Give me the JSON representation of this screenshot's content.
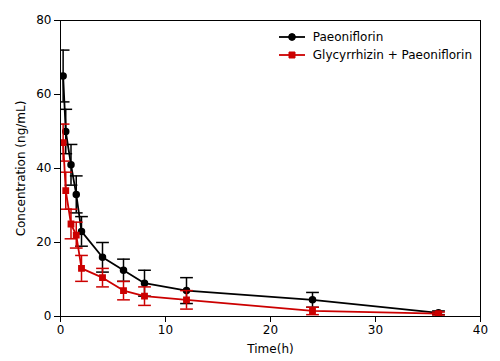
{
  "chart_data": {
    "type": "line",
    "xlabel": "Time(h)",
    "ylabel": "Concentration (ng/mL)",
    "xlim": [
      0,
      40
    ],
    "ylim": [
      0,
      80
    ],
    "xticks": [
      0,
      10,
      20,
      30,
      40
    ],
    "yticks": [
      0,
      20,
      40,
      60,
      80
    ],
    "grid": false,
    "legend": "upper right",
    "series": [
      {
        "name": "Paeoniflorin",
        "color": "#000000",
        "marker": "circle",
        "x": [
          0.25,
          0.5,
          1.0,
          1.5,
          2.0,
          4.0,
          6.0,
          8.0,
          12.0,
          24.0,
          36.0
        ],
        "values": [
          65.0,
          50.0,
          41.0,
          33.0,
          23.0,
          16.0,
          12.5,
          9.0,
          7.0,
          4.5,
          1.0
        ],
        "yerr": [
          7.0,
          6.0,
          5.5,
          5.0,
          4.0,
          4.0,
          3.0,
          3.5,
          3.5,
          2.0,
          0.5
        ]
      },
      {
        "name": "Glycyrrhizin + Paeoniflorin",
        "color": "#cc0000",
        "marker": "square",
        "x": [
          0.25,
          0.5,
          1.0,
          1.5,
          2.0,
          4.0,
          6.0,
          8.0,
          12.0,
          24.0,
          36.0
        ],
        "values": [
          47.0,
          34.0,
          25.0,
          22.0,
          13.0,
          10.5,
          7.0,
          5.5,
          4.5,
          1.5,
          0.8
        ],
        "yerr": [
          5.0,
          5.0,
          4.0,
          3.5,
          3.5,
          2.5,
          2.5,
          2.5,
          2.5,
          1.0,
          0.4
        ]
      }
    ]
  }
}
